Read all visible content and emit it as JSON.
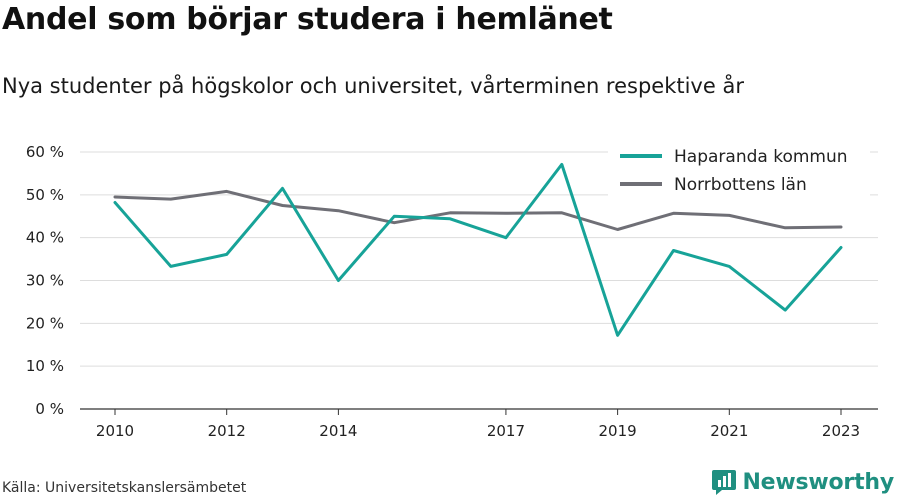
{
  "title": "Andel som börjar studera i hemlänet",
  "subtitle": "Nya studenter på högskolor och universitet, vårterminen respektive år",
  "source": "Källa: Universitetskanslersämbetet",
  "brand": {
    "name": "Newsworthy",
    "icon": "newsworthy-logo-icon",
    "color": "#1f8f80"
  },
  "chart_data": {
    "type": "line",
    "x": [
      2010,
      2011,
      2012,
      2013,
      2014,
      2015,
      2016,
      2017,
      2018,
      2019,
      2020,
      2021,
      2022,
      2023
    ],
    "x_ticks": [
      "2010",
      "2012",
      "2014",
      "2017",
      "2019",
      "2021",
      "2023"
    ],
    "y_ticks": [
      "60 %",
      "50 %",
      "40 %",
      "30 %",
      "20 %",
      "10 %",
      "0 %"
    ],
    "ylim": [
      0,
      60
    ],
    "grid": true,
    "legend_position": "top-right",
    "series": [
      {
        "name": "Haparanda kommun",
        "color": "#17a398",
        "values": [
          48.2,
          33.3,
          36.1,
          51.5,
          30.0,
          45.0,
          44.4,
          40.0,
          57.1,
          17.2,
          37.0,
          33.3,
          23.1,
          37.7
        ]
      },
      {
        "name": "Norrbottens län",
        "color": "#6f6f76",
        "values": [
          49.5,
          49.0,
          50.8,
          47.5,
          46.3,
          43.5,
          45.8,
          45.7,
          45.8,
          41.9,
          45.7,
          45.2,
          42.3,
          42.5
        ]
      }
    ]
  }
}
